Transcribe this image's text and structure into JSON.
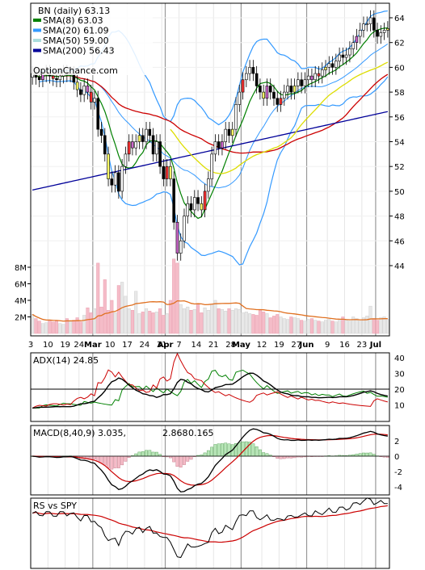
{
  "chart_data": [
    {
      "type": "candlestick",
      "title": "BN (daily) 63.13",
      "watermark": "OptionChance.com",
      "legend": [
        {
          "label": "SMA(8) 63.03",
          "color": "#008000"
        },
        {
          "label": "SMA(20) 61.09",
          "color": "#3399ff"
        },
        {
          "label": "SMA(50) 59.00",
          "color": "#aadddd"
        },
        {
          "label": "SMA(200) 56.43",
          "color": "#000099"
        }
      ],
      "price_ylim": [
        42,
        65
      ],
      "price_ticks": [
        44,
        46,
        48,
        50,
        52,
        54,
        56,
        58,
        60,
        62,
        64
      ],
      "volume_ticks": [
        "2M",
        "4M",
        "6M",
        "8M"
      ],
      "volume_tick_values": [
        2,
        4,
        6,
        8
      ],
      "volume_max": 10,
      "x_labels": [
        {
          "i": 0,
          "t": "3",
          "bold": false
        },
        {
          "i": 5,
          "t": "10",
          "bold": false
        },
        {
          "i": 10,
          "t": "19",
          "bold": false
        },
        {
          "i": 14,
          "t": "24",
          "bold": false
        },
        {
          "i": 18,
          "t": "Mar",
          "bold": true
        },
        {
          "i": 23,
          "t": "10",
          "bold": false
        },
        {
          "i": 28,
          "t": "17",
          "bold": false
        },
        {
          "i": 33,
          "t": "24",
          "bold": false
        },
        {
          "i": 38,
          "t": "31",
          "bold": false
        },
        {
          "i": 39,
          "t": "Apr",
          "bold": true
        },
        {
          "i": 43,
          "t": "7",
          "bold": false
        },
        {
          "i": 48,
          "t": "14",
          "bold": false
        },
        {
          "i": 53,
          "t": "21",
          "bold": false
        },
        {
          "i": 58,
          "t": "28",
          "bold": false
        },
        {
          "i": 61,
          "t": "May",
          "bold": true
        },
        {
          "i": 67,
          "t": "12",
          "bold": false
        },
        {
          "i": 72,
          "t": "19",
          "bold": false
        },
        {
          "i": 77,
          "t": "27",
          "bold": false
        },
        {
          "i": 80,
          "t": "Jun",
          "bold": true
        },
        {
          "i": 86,
          "t": "9",
          "bold": false
        },
        {
          "i": 91,
          "t": "16",
          "bold": false
        },
        {
          "i": 96,
          "t": "23",
          "bold": false
        },
        {
          "i": 100,
          "t": "Jul",
          "bold": true
        }
      ],
      "close": [
        59.5,
        59.2,
        59.0,
        59.4,
        59.6,
        59.3,
        59.1,
        59.0,
        59.3,
        59.6,
        59.4,
        59.5,
        58.8,
        58.2,
        57.8,
        58.5,
        58.0,
        57.2,
        57.5,
        55.0,
        54.5,
        53.0,
        51.0,
        50.5,
        51.5,
        50.0,
        52.0,
        53.0,
        54.0,
        53.5,
        54.0,
        54.5,
        54.0,
        55.0,
        54.5,
        53.0,
        54.0,
        52.0,
        51.0,
        52.0,
        51.0,
        47.5,
        45.0,
        46.0,
        48.0,
        49.0,
        48.5,
        49.5,
        49.0,
        48.5,
        50.0,
        51.0,
        53.0,
        54.0,
        53.5,
        54.0,
        55.0,
        54.5,
        55.0,
        57.0,
        58.0,
        59.0,
        59.5,
        60.0,
        59.5,
        58.5,
        58.0,
        57.5,
        58.5,
        58.0,
        57.5,
        57.0,
        57.5,
        58.0,
        58.5,
        58.0,
        58.5,
        59.0,
        58.5,
        59.0,
        59.3,
        59.0,
        59.5,
        59.3,
        59.8,
        60.0,
        60.3,
        60.0,
        60.5,
        61.0,
        60.8,
        61.0,
        61.5,
        62.0,
        62.5,
        63.0,
        63.5,
        63.5,
        64.0,
        63.0,
        62.5,
        62.8,
        63.0,
        63.13
      ],
      "volume": [
        2.3,
        1.8,
        1.5,
        1.2,
        1.3,
        1.6,
        1.4,
        1.5,
        1.2,
        1.1,
        1.8,
        1.5,
        1.6,
        1.9,
        1.4,
        2.2,
        3.1,
        2.5,
        3.0,
        8.5,
        3.2,
        6.5,
        2.8,
        4.0,
        2.5,
        5.8,
        6.2,
        4.5,
        3.0,
        2.8,
        5.1,
        2.4,
        2.6,
        3.0,
        2.7,
        2.5,
        2.6,
        3.0,
        2.2,
        2.4,
        4.0,
        9.0,
        8.5,
        3.5,
        3.0,
        3.2,
        2.8,
        2.9,
        3.6,
        2.5,
        3.1,
        2.8,
        3.5,
        4.0,
        3.0,
        2.9,
        2.7,
        3.0,
        2.8,
        3.0,
        2.9,
        2.5,
        2.6,
        2.4,
        2.3,
        2.2,
        2.8,
        2.6,
        2.4,
        1.9,
        2.1,
        2.3,
        2.0,
        1.8,
        1.7,
        2.0,
        1.9,
        1.8,
        1.6,
        1.5,
        1.7,
        1.8,
        1.6,
        1.5,
        1.4,
        1.6,
        1.7,
        1.5,
        1.4,
        1.6,
        2.0,
        1.6,
        1.5,
        2.0,
        1.8,
        1.5,
        1.9,
        2.1,
        3.3,
        1.8,
        1.6,
        1.9,
        2.0,
        1.7
      ]
    },
    {
      "type": "line",
      "title": "ADX(14) 24.85",
      "ylim": [
        0,
        45
      ],
      "yticks": [
        10,
        20,
        30,
        40
      ]
    },
    {
      "type": "line",
      "title": "MACD(8,40,9) 3.035,",
      "signal_label": "2.868",
      "hist_label": "0.165",
      "ylim": [
        -5.5,
        3.5
      ],
      "yticks": [
        -4,
        -2,
        0,
        2
      ]
    },
    {
      "type": "line",
      "title": "RS vs SPY"
    }
  ]
}
